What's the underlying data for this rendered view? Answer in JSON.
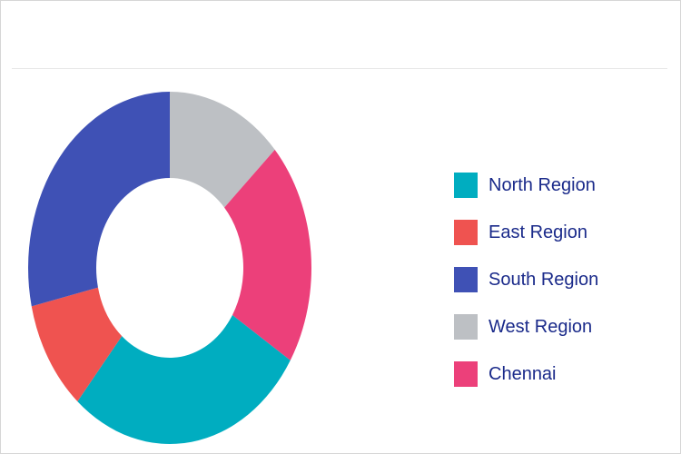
{
  "chart_data": {
    "type": "pie",
    "variant": "donut",
    "title": "",
    "legend_position": "right",
    "slices": [
      {
        "name": "West Region",
        "value": 13.3,
        "color": "#bdc0c4"
      },
      {
        "name": "Chennai",
        "value": 20.5,
        "color": "#ec407a"
      },
      {
        "name": "North Region",
        "value": 27.5,
        "color": "#00adc0"
      },
      {
        "name": "East Region",
        "value": 10.2,
        "color": "#ef5350"
      },
      {
        "name": "South Region",
        "value": 28.5,
        "color": "#3f51b5"
      }
    ],
    "legend": [
      {
        "name": "North Region",
        "color": "#00adc0"
      },
      {
        "name": "East Region",
        "color": "#ef5350"
      },
      {
        "name": "South Region",
        "color": "#3f51b5"
      },
      {
        "name": "West Region",
        "color": "#bdc0c4"
      },
      {
        "name": "Chennai",
        "color": "#ec407a"
      }
    ]
  }
}
